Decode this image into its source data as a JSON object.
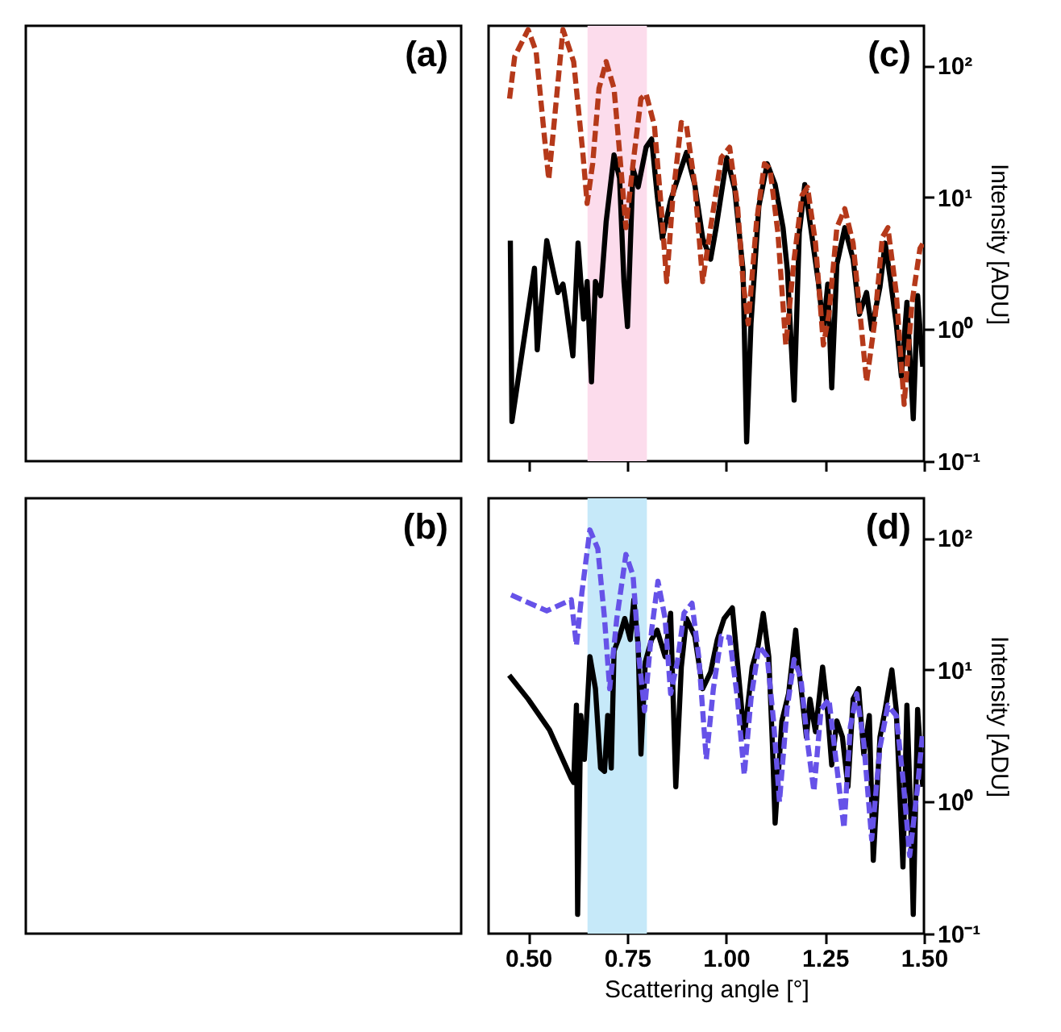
{
  "chart_data": [
    {
      "type": "other",
      "annotations": [
        "(a)"
      ]
    },
    {
      "type": "line",
      "annotations": [
        "(c)"
      ],
      "ylabel": "Intensity [ADU]",
      "log": "y",
      "grid": false,
      "tick_labels": "y",
      "xlim": [
        0.4,
        1.5
      ],
      "xticks": [
        {
          "value": 0.5,
          "label": null
        },
        {
          "value": 0.75,
          "label": null
        },
        {
          "value": 1.0,
          "label": null
        },
        {
          "value": 1.25,
          "label": null
        },
        {
          "value": 1.5,
          "label": null
        }
      ],
      "ylim": [
        0.1,
        200
      ],
      "yticks": [
        {
          "value": 0.1,
          "label": "10⁻¹"
        },
        {
          "value": 1,
          "label": "10⁰"
        },
        {
          "value": 10,
          "label": "10¹"
        },
        {
          "value": 100,
          "label": "10²"
        }
      ],
      "bands": [
        {
          "axis": "x",
          "from": 0.65,
          "to": 0.8,
          "color": "#fcdcec"
        }
      ],
      "series": [
        {
          "color": "#000000",
          "line_style": "solid",
          "x": [
            0.455,
            0.459,
            0.516,
            0.523,
            0.547,
            0.575,
            0.588,
            0.595,
            0.613,
            0.626,
            0.64,
            0.649,
            0.66,
            0.67,
            0.683,
            0.697,
            0.717,
            0.731,
            0.742,
            0.751,
            0.765,
            0.778,
            0.798,
            0.812,
            0.826,
            0.839,
            0.86,
            0.877,
            0.9,
            0.921,
            0.941,
            0.961,
            0.975,
            1.002,
            1.022,
            1.043,
            1.052,
            1.063,
            1.083,
            1.104,
            1.124,
            1.144,
            1.155,
            1.172,
            1.185,
            1.199,
            1.212,
            1.233,
            1.246,
            1.257,
            1.267,
            1.28,
            1.3,
            1.321,
            1.337,
            1.355,
            1.368,
            1.389,
            1.402,
            1.416,
            1.43,
            1.443,
            1.457,
            1.473,
            1.484,
            1.497
          ],
          "values": [
            4.7,
            0.2,
            2.9,
            0.7,
            4.7,
            1.9,
            2.2,
            1.6,
            0.63,
            4.5,
            1.2,
            2.3,
            0.4,
            2.3,
            1.8,
            6.5,
            21,
            14,
            2.3,
            1.05,
            16.5,
            12,
            24,
            27.7,
            10.4,
            4.9,
            9.5,
            13.6,
            21.9,
            12.5,
            4.9,
            3.4,
            5.9,
            20,
            11.5,
            2.8,
            0.14,
            1.1,
            8.6,
            18,
            12.5,
            5.9,
            2.8,
            0.29,
            5.4,
            12.5,
            6.5,
            2.3,
            1.0,
            2.2,
            0.36,
            3.1,
            5.9,
            3.4,
            1.3,
            1.9,
            1.0,
            2.1,
            4.5,
            2.3,
            1.1,
            0.44,
            1.6,
            0.21,
            1.8,
            0.52
          ]
        },
        {
          "color": "#b5391a",
          "line_style": "dashed",
          "x": [
            0.453,
            0.466,
            0.5,
            0.52,
            0.541,
            0.552,
            0.565,
            0.588,
            0.615,
            0.638,
            0.649,
            0.663,
            0.679,
            0.697,
            0.717,
            0.731,
            0.747,
            0.765,
            0.785,
            0.798,
            0.819,
            0.836,
            0.85,
            0.866,
            0.887,
            0.9,
            0.921,
            0.941,
            0.961,
            0.988,
            1.009,
            1.029,
            1.043,
            1.056,
            1.077,
            1.097,
            1.111,
            1.131,
            1.151,
            1.172,
            1.192,
            1.206,
            1.226,
            1.246,
            1.26,
            1.28,
            1.3,
            1.321,
            1.341,
            1.355,
            1.375,
            1.395,
            1.409,
            1.43,
            1.45,
            1.47,
            1.49,
            1.5
          ],
          "values": [
            56,
            117,
            187,
            128,
            29,
            13.7,
            35,
            187,
            107,
            22,
            9,
            18,
            67,
            107,
            67,
            22,
            5.9,
            18,
            56,
            61,
            35,
            8.6,
            2.3,
            10.4,
            37,
            35,
            12.5,
            2.3,
            5.9,
            20,
            24,
            8.6,
            2.3,
            1.1,
            6.5,
            18,
            16.5,
            5.4,
            0.76,
            3.4,
            10.4,
            11.9,
            4.5,
            0.76,
            1.3,
            5.9,
            8.2,
            4.5,
            1.1,
            0.4,
            1.1,
            5,
            5.9,
            1.9,
            0.27,
            1.6,
            4.1,
            4.6
          ]
        }
      ]
    },
    {
      "type": "other",
      "annotations": [
        "(b)"
      ]
    },
    {
      "type": "line",
      "annotations": [
        "(d)"
      ],
      "xlabel": "Scattering angle [°]",
      "ylabel": "Intensity [ADU]",
      "log": "y",
      "grid": false,
      "xlim": [
        0.4,
        1.5
      ],
      "xticks": [
        {
          "value": 0.5,
          "label": "0.50"
        },
        {
          "value": 0.75,
          "label": "0.75"
        },
        {
          "value": 1.0,
          "label": "1.00"
        },
        {
          "value": 1.25,
          "label": "1.25"
        },
        {
          "value": 1.5,
          "label": "1.50"
        }
      ],
      "ylim": [
        0.1,
        200
      ],
      "yticks": [
        {
          "value": 0.1,
          "label": "10⁻¹"
        },
        {
          "value": 1,
          "label": "10⁰"
        },
        {
          "value": 10,
          "label": "10¹"
        },
        {
          "value": 100,
          "label": "10²"
        }
      ],
      "bands": [
        {
          "axis": "x",
          "from": 0.65,
          "to": 0.8,
          "color": "#c6e9f9"
        }
      ],
      "series": [
        {
          "color": "#000000",
          "line_style": "solid",
          "x": [
            0.452,
            0.5,
            0.554,
            0.609,
            0.615,
            0.622,
            0.625,
            0.633,
            0.642,
            0.656,
            0.67,
            0.683,
            0.693,
            0.701,
            0.71,
            0.717,
            0.731,
            0.744,
            0.758,
            0.767,
            0.778,
            0.785,
            0.796,
            0.812,
            0.826,
            0.846,
            0.86,
            0.873,
            0.887,
            0.9,
            0.921,
            0.941,
            0.961,
            0.978,
            0.995,
            1.016,
            1.036,
            1.046,
            1.066,
            1.081,
            1.094,
            1.108,
            1.117,
            1.124,
            1.141,
            1.158,
            1.176,
            1.185,
            1.203,
            1.212,
            1.226,
            1.244,
            1.256,
            1.267,
            1.28,
            1.294,
            1.308,
            1.321,
            1.335,
            1.348,
            1.362,
            1.372,
            1.389,
            1.402,
            1.419,
            1.43,
            1.447,
            1.457,
            1.466,
            1.473,
            1.484,
            1.497
          ],
          "values": [
            9.1,
            6,
            3.5,
            1.5,
            1.4,
            5.4,
            0.14,
            4.5,
            2.1,
            12.6,
            7.2,
            1.8,
            1.7,
            4.5,
            1.8,
            13.9,
            18,
            24.5,
            17,
            34,
            15.2,
            2.3,
            11.5,
            17,
            20,
            12.6,
            26.8,
            1.3,
            10.5,
            24.5,
            18,
            7.2,
            9.6,
            17,
            24.5,
            29.5,
            6.6,
            3.1,
            10.5,
            15.2,
            26.8,
            12.6,
            2.8,
            0.69,
            4.1,
            6.6,
            20,
            9.6,
            3.1,
            6,
            3.4,
            10.5,
            5,
            1.9,
            4.1,
            3.1,
            1.3,
            6,
            7.2,
            2.3,
            4.5,
            0.36,
            3.1,
            5,
            10,
            5,
            0.32,
            5.4,
            0.91,
            0.14,
            5,
            1.3
          ]
        },
        {
          "color": "#6652e8",
          "line_style": "dashed",
          "x": [
            0.457,
            0.547,
            0.609,
            0.622,
            0.636,
            0.656,
            0.676,
            0.693,
            0.706,
            0.724,
            0.747,
            0.765,
            0.781,
            0.794,
            0.812,
            0.828,
            0.846,
            0.86,
            0.877,
            0.894,
            0.914,
            0.931,
            0.95,
            0.968,
            0.988,
            1.009,
            1.029,
            1.046,
            1.063,
            1.083,
            1.104,
            1.12,
            1.135,
            1.154,
            1.172,
            1.189,
            1.206,
            1.222,
            1.24,
            1.26,
            1.276,
            1.298,
            1.314,
            1.33,
            1.348,
            1.368,
            1.389,
            1.409,
            1.43,
            1.447,
            1.464,
            1.484,
            1.497
          ],
          "values": [
            37,
            28,
            34,
            15.3,
            39,
            115,
            83,
            24.5,
            7.2,
            24.5,
            75,
            52,
            11.5,
            4.9,
            20,
            47,
            24.5,
            6.6,
            11.5,
            27,
            32,
            12.6,
            2.1,
            7.2,
            18,
            17.6,
            6,
            1.6,
            6,
            15.2,
            12.6,
            4.1,
            1.0,
            5,
            12,
            8.7,
            2.8,
            1.2,
            5,
            6,
            2.3,
            0.63,
            3.7,
            6.6,
            2.8,
            0.52,
            2.6,
            5.4,
            4.5,
            1.5,
            0.39,
            1.3,
            3.4
          ]
        }
      ]
    }
  ]
}
